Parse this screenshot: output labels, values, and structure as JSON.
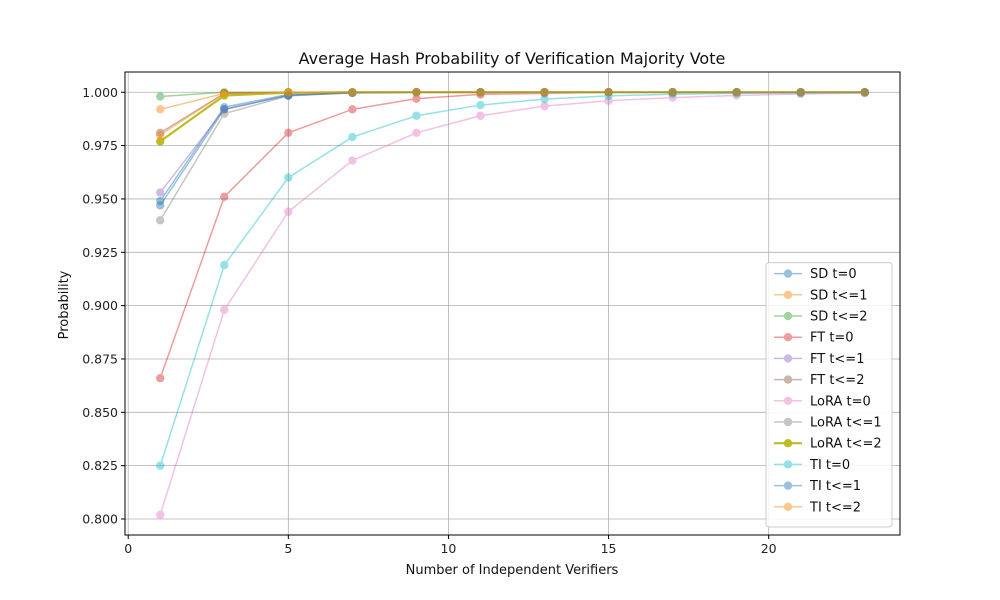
{
  "chart_data": {
    "type": "line",
    "title": "Average Hash Probability of Verification Majority Vote",
    "xlabel": "Number of Independent Verifiers",
    "ylabel": "Probability",
    "xlim": [
      -0.1,
      24.1
    ],
    "ylim": [
      0.7925,
      1.0095
    ],
    "xticks": [
      0,
      5,
      10,
      15,
      20
    ],
    "yticks": [
      0.8,
      0.825,
      0.85,
      0.875,
      0.9,
      0.925,
      0.95,
      0.975,
      1.0
    ],
    "grid": true,
    "legend_position": "lower-right",
    "x": [
      1,
      3,
      5,
      7,
      9,
      11,
      13,
      15,
      17,
      19,
      21,
      23
    ],
    "series": [
      {
        "name": "SD t=0",
        "color": "#1f77b4",
        "alpha": 0.45,
        "values": [
          0.949,
          0.993,
          0.999,
          0.9998,
          1.0,
          1.0,
          1.0,
          1.0,
          1.0,
          1.0,
          1.0,
          1.0
        ]
      },
      {
        "name": "SD t<=1",
        "color": "#ff7f0e",
        "alpha": 0.45,
        "values": [
          0.992,
          0.9995,
          1.0,
          1.0,
          1.0,
          1.0,
          1.0,
          1.0,
          1.0,
          1.0,
          1.0,
          1.0
        ]
      },
      {
        "name": "SD t<=2",
        "color": "#2ca02c",
        "alpha": 0.45,
        "values": [
          0.998,
          1.0,
          1.0,
          1.0,
          1.0,
          1.0,
          1.0,
          1.0,
          1.0,
          1.0,
          1.0,
          1.0
        ]
      },
      {
        "name": "FT t=0",
        "color": "#d62728",
        "alpha": 0.45,
        "values": [
          0.866,
          0.951,
          0.981,
          0.992,
          0.997,
          0.999,
          0.9995,
          1.0,
          1.0,
          1.0,
          1.0,
          1.0
        ]
      },
      {
        "name": "FT t<=1",
        "color": "#9467bd",
        "alpha": 0.45,
        "values": [
          0.953,
          0.992,
          0.9985,
          0.9997,
          1.0,
          1.0,
          1.0,
          1.0,
          1.0,
          1.0,
          1.0,
          1.0
        ]
      },
      {
        "name": "FT t<=2",
        "color": "#8c564b",
        "alpha": 0.45,
        "values": [
          0.981,
          0.9995,
          1.0,
          1.0,
          1.0,
          1.0,
          1.0,
          1.0,
          1.0,
          1.0,
          1.0,
          1.0
        ]
      },
      {
        "name": "LoRA t=0",
        "color": "#e377c2",
        "alpha": 0.45,
        "values": [
          0.802,
          0.898,
          0.944,
          0.968,
          0.981,
          0.989,
          0.9935,
          0.996,
          0.9975,
          0.9985,
          0.9992,
          0.9996
        ]
      },
      {
        "name": "LoRA t<=1",
        "color": "#7f7f7f",
        "alpha": 0.45,
        "values": [
          0.94,
          0.99,
          0.9983,
          0.9997,
          1.0,
          1.0,
          1.0,
          1.0,
          1.0,
          1.0,
          1.0,
          1.0
        ]
      },
      {
        "name": "LoRA t<=2",
        "color": "#bcbd22",
        "alpha": 1.0,
        "width": 2.2,
        "values": [
          0.977,
          0.9985,
          0.9998,
          1.0,
          1.0,
          1.0,
          1.0,
          1.0,
          1.0,
          1.0,
          1.0,
          1.0
        ]
      },
      {
        "name": "TI t=0",
        "color": "#17becf",
        "alpha": 0.45,
        "values": [
          0.825,
          0.919,
          0.96,
          0.979,
          0.989,
          0.994,
          0.9968,
          0.9983,
          0.9991,
          0.9995,
          0.9997,
          0.9999
        ]
      },
      {
        "name": "TI t<=1",
        "color": "#1f77b4",
        "alpha": 0.45,
        "values": [
          0.947,
          0.992,
          0.9986,
          0.9998,
          1.0,
          1.0,
          1.0,
          1.0,
          1.0,
          1.0,
          1.0,
          1.0
        ]
      },
      {
        "name": "TI t<=2",
        "color": "#ff7f0e",
        "alpha": 0.45,
        "values": [
          0.98,
          0.9995,
          1.0,
          1.0,
          1.0,
          1.0,
          1.0,
          1.0,
          1.0,
          1.0,
          1.0,
          1.0
        ]
      }
    ]
  }
}
